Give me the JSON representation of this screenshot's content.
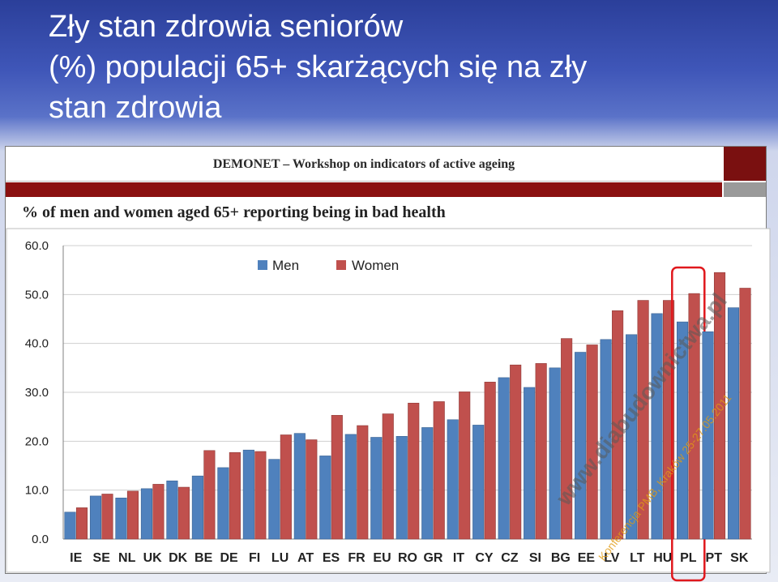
{
  "slide": {
    "title_lines": [
      "Zły stan zdrowia seniorów",
      "(%) populacji 65+ skarżących się na zły",
      "stan zdrowia"
    ]
  },
  "panel": {
    "header": "DEMONET – Workshop on indicators of active ageing",
    "subtitle": "% of men and women aged 65+ reporting being in bad health"
  },
  "watermark": {
    "site": "www.diabudownictwa.pl",
    "conference": "Konferencja PMB, Kraków 25-27.05.2011"
  },
  "colors": {
    "men": "#4f81bd",
    "women": "#c0504d",
    "highlight": "#e0181d"
  },
  "chart_data": {
    "type": "bar",
    "categories": [
      "IE",
      "SE",
      "NL",
      "UK",
      "DK",
      "BE",
      "DE",
      "FI",
      "LU",
      "AT",
      "ES",
      "FR",
      "EU",
      "RO",
      "GR",
      "IT",
      "CY",
      "CZ",
      "SI",
      "BG",
      "EE",
      "LV",
      "LT",
      "HU",
      "PL",
      "PT",
      "SK"
    ],
    "series": [
      {
        "name": "Men",
        "values": [
          5.5,
          8.8,
          8.4,
          10.3,
          11.9,
          12.9,
          14.6,
          18.2,
          16.3,
          21.6,
          17.0,
          21.4,
          20.8,
          21.0,
          22.8,
          24.4,
          23.3,
          33.0,
          31.0,
          35.0,
          38.2,
          40.8,
          41.8,
          46.1,
          44.4,
          42.4,
          47.3
        ]
      },
      {
        "name": "Women",
        "values": [
          6.4,
          9.2,
          9.8,
          11.2,
          10.6,
          18.1,
          17.7,
          17.9,
          21.3,
          20.3,
          25.3,
          23.2,
          25.6,
          27.8,
          28.1,
          30.1,
          32.1,
          35.6,
          35.9,
          41.0,
          39.7,
          46.7,
          48.8,
          48.8,
          50.2,
          54.5,
          51.3
        ]
      }
    ],
    "ylim": [
      0,
      60
    ],
    "yticks": [
      "0.0",
      "10.0",
      "20.0",
      "30.0",
      "40.0",
      "50.0",
      "60.0"
    ],
    "highlighted_category": "PL",
    "legend": "top-center",
    "grid": true
  }
}
